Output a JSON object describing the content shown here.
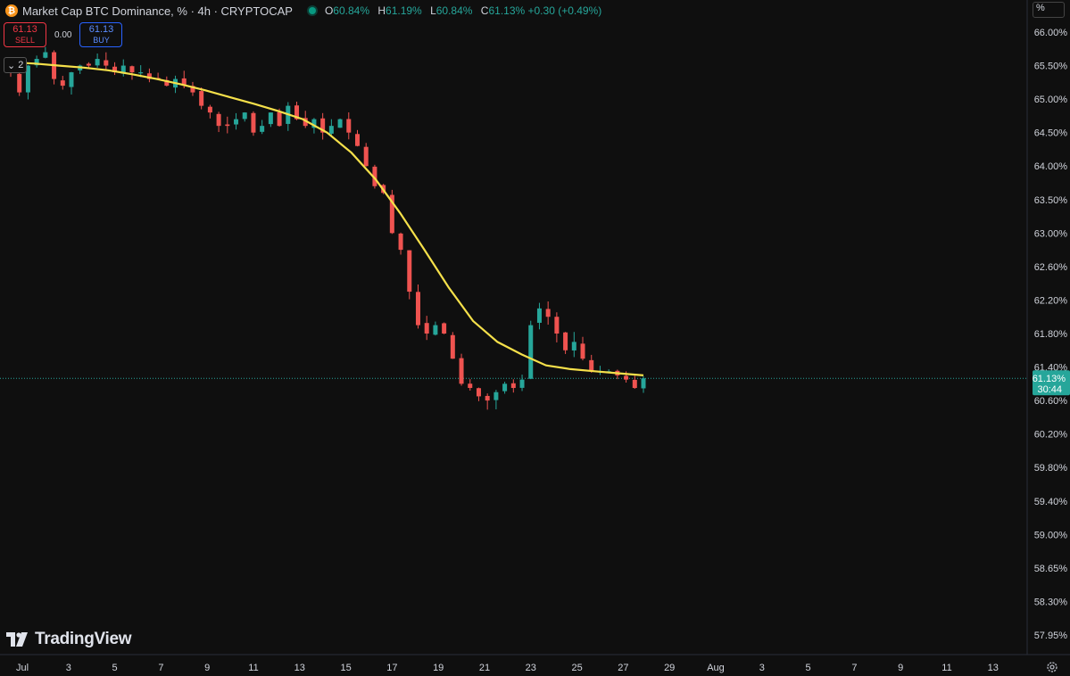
{
  "header": {
    "icon": "bitcoin-icon",
    "symbol_title": "Market Cap BTC Dominance, % · 4h · CRYPTOCAP",
    "ohlc": [
      {
        "label": "O",
        "value": "60.84%"
      },
      {
        "label": "H",
        "value": "61.19%"
      },
      {
        "label": "L",
        "value": "60.84%"
      },
      {
        "label": "C",
        "value": "61.13% +0.30 (+0.49%)"
      }
    ]
  },
  "trade": {
    "sell_price": "61.13",
    "sell_label": "SELL",
    "spread": "0.00",
    "buy_price": "61.13",
    "buy_label": "BUY"
  },
  "indicators_toggle": {
    "count": "2"
  },
  "scale_mode": "%",
  "brand": {
    "name": "TradingView"
  },
  "colors": {
    "background": "#0f0f0f",
    "up": "#26a69a",
    "down": "#ef5350",
    "ma_line": "#f5e04a",
    "price_tag": "#26a69a",
    "grid_text": "#d1d4dc"
  },
  "chart_data": {
    "type": "candlestick",
    "title": "Market Cap BTC Dominance, % · 4h · CRYPTOCAP",
    "price_tag": {
      "value": "61.13%",
      "countdown": "30:44"
    },
    "y_ticks": [
      "66.00%",
      "65.50%",
      "65.00%",
      "64.50%",
      "64.00%",
      "63.50%",
      "63.00%",
      "62.60%",
      "62.20%",
      "61.80%",
      "61.40%",
      "60.60%",
      "60.20%",
      "59.80%",
      "59.40%",
      "59.00%",
      "58.65%",
      "58.30%",
      "57.95%"
    ],
    "x_ticks": [
      "Jul",
      "3",
      "5",
      "7",
      "9",
      "11",
      "13",
      "15",
      "17",
      "19",
      "21",
      "23",
      "25",
      "27",
      "29",
      "Aug",
      "3",
      "5",
      "7",
      "9",
      "11",
      "13"
    ],
    "ylim": [
      57.9,
      66.1
    ],
    "grid": false,
    "close_series": [
      65.4,
      65.1,
      65.5,
      65.6,
      65.7,
      65.3,
      65.2,
      65.4,
      65.5,
      65.5,
      65.6,
      65.5,
      65.4,
      65.5,
      65.4,
      65.4,
      65.3,
      65.3,
      65.2,
      65.3,
      65.2,
      65.1,
      64.9,
      64.8,
      64.6,
      64.6,
      64.7,
      64.8,
      64.5,
      64.6,
      64.8,
      64.6,
      64.9,
      64.7,
      64.6,
      64.7,
      64.5,
      64.6,
      64.7,
      64.5,
      64.3,
      64.0,
      63.7,
      63.6,
      63.0,
      62.8,
      62.3,
      61.9,
      61.8,
      61.9,
      61.8,
      61.5,
      61.0,
      60.9,
      60.7,
      60.6,
      60.8,
      61.0,
      60.9,
      61.1,
      61.9,
      62.1,
      62.0,
      61.8,
      61.6,
      61.7,
      61.5,
      61.3,
      61.3,
      61.3,
      61.2,
      61.1,
      60.9,
      61.13
    ],
    "moving_average": [
      65.55,
      65.53,
      65.5,
      65.47,
      65.43,
      65.37,
      65.3,
      65.22,
      65.13,
      65.03,
      64.93,
      64.82,
      64.7,
      64.5,
      64.2,
      63.8,
      63.3,
      62.8,
      62.35,
      61.95,
      61.7,
      61.55,
      61.42,
      61.35,
      61.3,
      61.25,
      61.2
    ]
  }
}
